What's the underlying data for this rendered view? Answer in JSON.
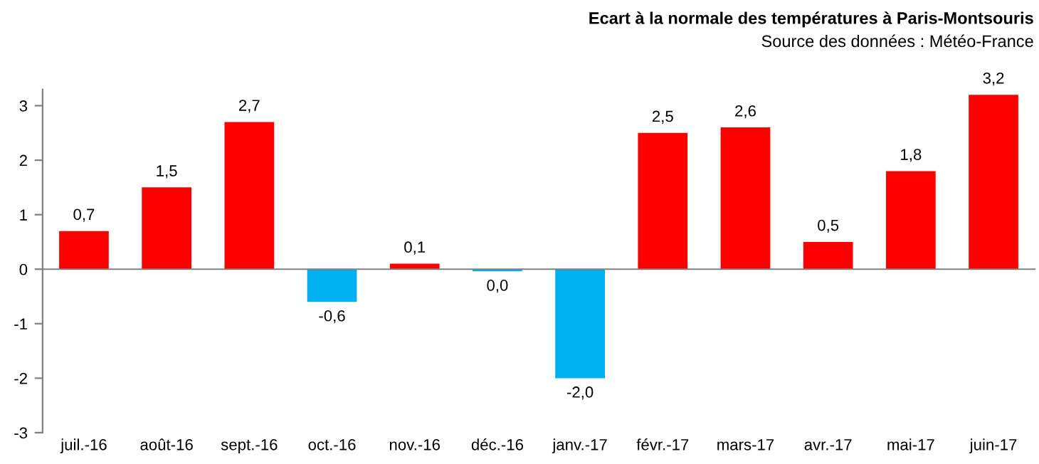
{
  "chart_data": {
    "type": "bar",
    "title": "Ecart à la normale des températures à Paris-Montsouris",
    "subtitle": "Source des données : Météo-France",
    "categories": [
      "juil.-16",
      "août-16",
      "sept.-16",
      "oct.-16",
      "nov.-16",
      "déc.-16",
      "janv.-17",
      "févr.-17",
      "mars-17",
      "avr.-17",
      "mai-17",
      "juin-17"
    ],
    "values": [
      0.7,
      1.5,
      2.7,
      -0.6,
      0.1,
      -0.04,
      -2.0,
      2.5,
      2.6,
      0.5,
      1.8,
      3.2
    ],
    "colors": [
      "#ff0000",
      "#ff0000",
      "#ff0000",
      "#00b0f0",
      "#ff0000",
      "#00b0f0",
      "#00b0f0",
      "#ff0000",
      "#ff0000",
      "#ff0000",
      "#ff0000",
      "#ff0000"
    ],
    "value_labels": [
      "0,7",
      "1,5",
      "2,7",
      "-0,6",
      "0,1",
      "0,0",
      "-2,0",
      "2,5",
      "2,6",
      "0,5",
      "1,8",
      "3,2"
    ],
    "ylim": [
      -3,
      3.3
    ],
    "yticks": [
      {
        "value": -3,
        "label": "-3"
      },
      {
        "value": -2,
        "label": "-2"
      },
      {
        "value": -1,
        "label": "-1"
      },
      0,
      1,
      2,
      3
    ],
    "legend": false
  }
}
